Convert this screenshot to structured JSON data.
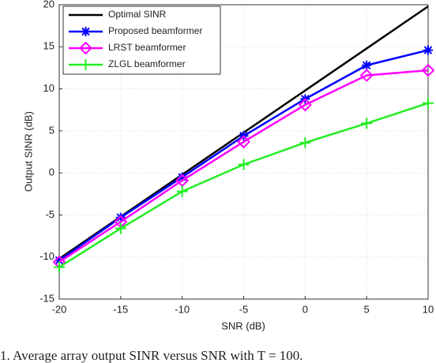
{
  "chart_data": {
    "type": "line",
    "xlabel": "SNR (dB)",
    "ylabel": "Output SINR (dB)",
    "caption": "1.   Average array output SINR versus SNR with T = 100.",
    "x": [
      -20,
      -15,
      -10,
      -5,
      0,
      5,
      10
    ],
    "series": [
      {
        "name": "Optimal SINR",
        "color": "#000000",
        "marker": "none",
        "values": [
          -10.2,
          -5.2,
          -0.2,
          4.8,
          9.8,
          14.8,
          19.8
        ]
      },
      {
        "name": "Proposed beamformer",
        "color": "#0000ff",
        "marker": "star",
        "values": [
          -10.4,
          -5.3,
          -0.5,
          4.4,
          8.8,
          12.8,
          14.6
        ]
      },
      {
        "name": "LRST beamformer",
        "color": "#ff00ff",
        "marker": "diamond",
        "values": [
          -10.6,
          -5.8,
          -0.9,
          3.7,
          8.1,
          11.6,
          12.2
        ]
      },
      {
        "name": "ZLGL beamformer",
        "color": "#22ee22",
        "marker": "plus",
        "values": [
          -11.2,
          -6.6,
          -2.2,
          1.0,
          3.6,
          5.9,
          8.3
        ]
      }
    ],
    "xlim": [
      -20,
      10
    ],
    "xticks": [
      -20,
      -15,
      -10,
      -5,
      0,
      5,
      10
    ],
    "ylim": [
      -15,
      20
    ],
    "yticks": [
      -15,
      -10,
      -5,
      0,
      5,
      10,
      15,
      20
    ],
    "grid": true,
    "legend": "upper left"
  }
}
